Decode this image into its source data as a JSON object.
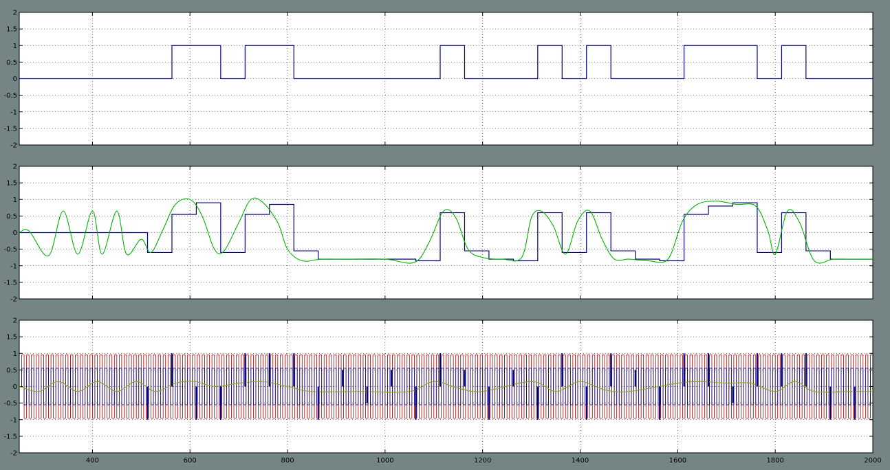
{
  "window": {
    "background": "#758586"
  },
  "axes_common": {
    "xlim": [
      250,
      2000
    ],
    "ylim": [
      -2,
      2
    ],
    "x_ticks": [
      400,
      600,
      800,
      1000,
      1200,
      1400,
      1600,
      1800,
      2000
    ],
    "x_tick_labels": [
      "400",
      "600",
      "800",
      "1000",
      "1200",
      "1400",
      "1600",
      "1800",
      "2000"
    ],
    "y_ticks": [
      2,
      1.5,
      1,
      0.5,
      0,
      -0.5,
      -1,
      -1.5,
      -2
    ],
    "y_tick_labels": [
      "2",
      "1.5",
      "1",
      "0.5",
      "0",
      "-0.5",
      "-1",
      "-1.5",
      "-2"
    ],
    "grid": true,
    "grid_style": "dotted",
    "x_tick_labels_shown_on": "bottom-plot-only"
  },
  "chart_data": [
    {
      "type": "line",
      "id": "top",
      "title": "",
      "xlabel": "",
      "ylabel": "",
      "series": [
        {
          "kind": "step",
          "color": "#00007f",
          "x": [
            250,
            563,
            663,
            713,
            813,
            1113,
            1163,
            1313,
            1363,
            1413,
            1463,
            1613,
            1763,
            1813,
            1863,
            2000
          ],
          "y": [
            0,
            1,
            0,
            1,
            0,
            1,
            0,
            1,
            0,
            1,
            0,
            1,
            0,
            1,
            0,
            0
          ]
        }
      ]
    },
    {
      "type": "line",
      "id": "middle",
      "title": "",
      "xlabel": "",
      "ylabel": "",
      "series": [
        {
          "kind": "step",
          "color": "#00007f",
          "x": [
            250,
            513,
            563,
            613,
            663,
            713,
            763,
            813,
            863,
            913,
            963,
            1013,
            1063,
            1113,
            1163,
            1213,
            1263,
            1313,
            1363,
            1413,
            1463,
            1513,
            1563,
            1613,
            1663,
            1713,
            1763,
            1813,
            1863,
            1913,
            2000
          ],
          "y": [
            0,
            -0.6,
            0.55,
            0.9,
            -0.6,
            0.55,
            0.85,
            -0.55,
            -0.8,
            -0.8,
            -0.8,
            -0.8,
            -0.85,
            0.6,
            -0.55,
            -0.8,
            -0.85,
            0.6,
            -0.6,
            0.6,
            -0.55,
            -0.8,
            -0.85,
            0.55,
            0.8,
            0.9,
            -0.6,
            0.6,
            -0.55,
            -0.8,
            -0.8
          ]
        },
        {
          "kind": "smooth",
          "color": "#00b400",
          "x": [
            250,
            270,
            310,
            340,
            370,
            400,
            420,
            450,
            470,
            500,
            520,
            545,
            570,
            600,
            625,
            650,
            670,
            700,
            725,
            750,
            780,
            800,
            830,
            870,
            920,
            1000,
            1060,
            1090,
            1120,
            1145,
            1170,
            1200,
            1240,
            1280,
            1300,
            1320,
            1345,
            1370,
            1395,
            1420,
            1445,
            1470,
            1500,
            1540,
            1580,
            1610,
            1640,
            1680,
            1720,
            1760,
            1785,
            1800,
            1825,
            1850,
            1880,
            1920,
            1960,
            2000
          ],
          "y": [
            0,
            0.05,
            -0.7,
            0.65,
            -0.65,
            0.65,
            -0.65,
            0.65,
            -0.65,
            -0.2,
            -0.6,
            0.1,
            0.85,
            1.0,
            0.5,
            -0.5,
            -0.55,
            0.3,
            1.0,
            0.9,
            0.3,
            -0.5,
            -0.85,
            -0.8,
            -0.8,
            -0.8,
            -0.9,
            -0.3,
            0.65,
            0.45,
            -0.5,
            -0.75,
            -0.8,
            -0.75,
            0.45,
            0.65,
            0.2,
            -0.65,
            0.35,
            0.65,
            -0.2,
            -0.8,
            -0.8,
            -0.85,
            -0.8,
            0.35,
            0.85,
            0.95,
            0.85,
            0.8,
            0.05,
            -0.65,
            0.65,
            0.3,
            -0.85,
            -0.8,
            -0.8,
            -0.8
          ]
        }
      ]
    },
    {
      "type": "line",
      "id": "bottom",
      "title": "",
      "xlabel": "",
      "ylabel": "",
      "series": [
        {
          "kind": "carrier",
          "color": "#a00000",
          "x_start": 255,
          "x_end": 2000,
          "period": 10,
          "levels": [
            0.95,
            -0.95
          ]
        },
        {
          "kind": "carrier",
          "color": "#00007f",
          "x_start": 255,
          "x_end": 2000,
          "period": 10,
          "levels": [
            0.55,
            -0.55
          ]
        },
        {
          "kind": "smooth",
          "color": "#9aa000",
          "x": [
            250,
            290,
            330,
            370,
            410,
            450,
            490,
            530,
            570,
            610,
            650,
            700,
            750,
            800,
            850,
            950,
            1050,
            1100,
            1150,
            1200,
            1300,
            1350,
            1400,
            1450,
            1500,
            1600,
            1650,
            1700,
            1750,
            1800,
            1840,
            1880,
            1950,
            2000
          ],
          "y": [
            0,
            -0.15,
            0.15,
            -0.15,
            0.15,
            -0.15,
            0.15,
            -0.15,
            0.1,
            0.15,
            0.0,
            0.1,
            0.15,
            0.0,
            -0.15,
            -0.15,
            -0.15,
            0.15,
            -0.05,
            -0.15,
            0.15,
            -0.15,
            0.15,
            -0.1,
            -0.15,
            0.1,
            0.15,
            0.1,
            0.1,
            -0.15,
            0.15,
            -0.15,
            -0.15,
            -0.15
          ]
        },
        {
          "kind": "pulses",
          "color": "#00007f",
          "x": [
            513,
            563,
            613,
            663,
            713,
            763,
            813,
            863,
            913,
            963,
            1013,
            1063,
            1113,
            1163,
            1213,
            1263,
            1313,
            1363,
            1413,
            1463,
            1513,
            1563,
            1613,
            1663,
            1713,
            1763,
            1813,
            1863,
            1913,
            1963
          ],
          "y": [
            -1,
            1,
            -1,
            -1,
            1,
            1,
            1,
            -1,
            0.5,
            -0.5,
            0.5,
            -1,
            1,
            0.5,
            -1,
            0.5,
            -1,
            1,
            -1,
            1,
            0.5,
            -1,
            1,
            1,
            -0.5,
            1,
            1,
            1,
            -1,
            -1
          ]
        }
      ]
    }
  ]
}
